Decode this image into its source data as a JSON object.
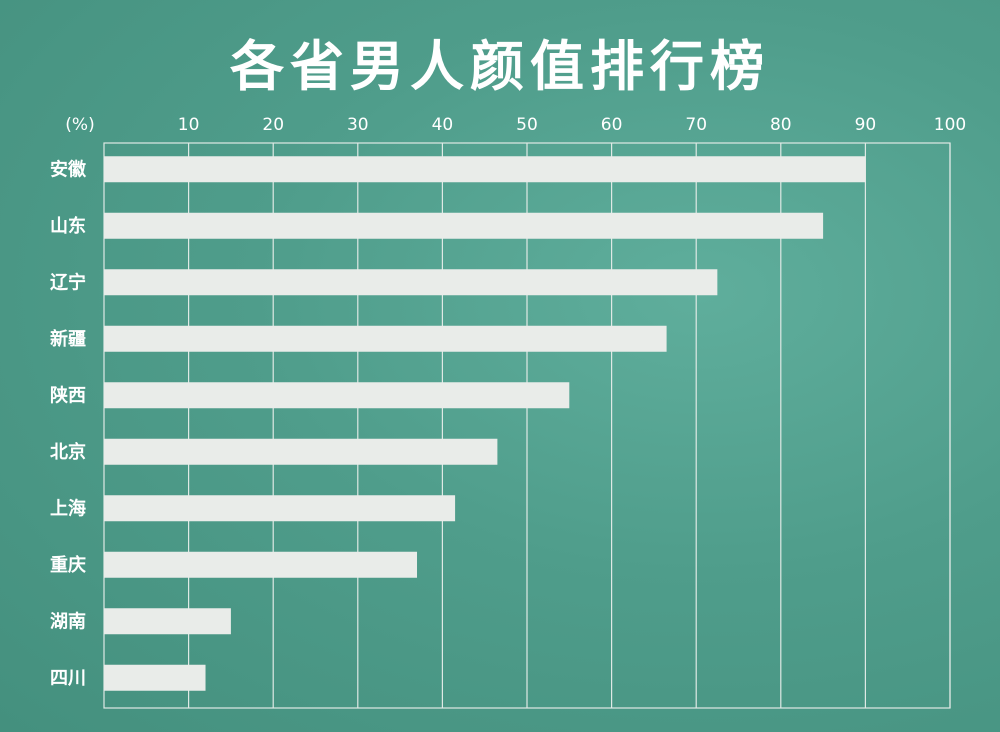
{
  "chart_data": {
    "type": "bar",
    "orientation": "horizontal",
    "title": "各省男人颜值排行榜",
    "unit_label": "(%)",
    "categories": [
      "安徽",
      "山东",
      "辽宁",
      "新疆",
      "陕西",
      "北京",
      "上海",
      "重庆",
      "湖南",
      "四川"
    ],
    "values": [
      90,
      85,
      72.5,
      66.5,
      55,
      46.5,
      41.5,
      37,
      15,
      12
    ],
    "xlim": [
      0,
      100
    ],
    "xticks": [
      10,
      20,
      30,
      40,
      50,
      60,
      70,
      80,
      90,
      100
    ],
    "grid": true,
    "colors": {
      "bar": "#e9ece9",
      "grid": "#dfe9e5",
      "text": "#ffffff"
    }
  }
}
